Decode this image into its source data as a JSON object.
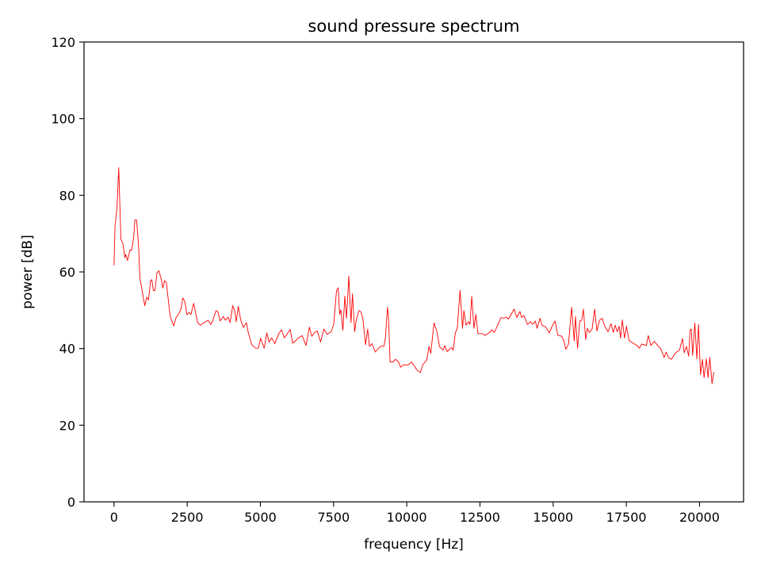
{
  "chart_data": {
    "type": "line",
    "title": "sound pressure spectrum",
    "xlabel": "frequency [Hz]",
    "ylabel": "power [dB]",
    "xlim": [
      -1024,
      21504
    ],
    "ylim": [
      0,
      120
    ],
    "xticks": [
      0,
      2500,
      5000,
      7500,
      10000,
      12500,
      15000,
      17500,
      20000
    ],
    "yticks": [
      0,
      20,
      40,
      60,
      80,
      100,
      120
    ],
    "grid": false,
    "line_color": "#ff0000",
    "series": [
      {
        "x": [
          0,
          35,
          100,
          163,
          235,
          300,
          370,
          400,
          460,
          550,
          600,
          670,
          715,
          770,
          840,
          885,
          940,
          1050,
          1120,
          1175,
          1250,
          1290,
          1345,
          1400,
          1470,
          1535,
          1610,
          1670,
          1725,
          1790,
          1860,
          1925,
          2040,
          2110,
          2220,
          2285,
          2350,
          2420,
          2490,
          2565,
          2630,
          2720,
          2855,
          2945,
          3080,
          3215,
          3305,
          3380,
          3485,
          3550,
          3625,
          3730,
          3805,
          3895,
          3965,
          4055,
          4120,
          4175,
          4245,
          4330,
          4420,
          4520,
          4590,
          4705,
          4840,
          4930,
          5005,
          5130,
          5220,
          5295,
          5385,
          5490,
          5630,
          5725,
          5815,
          5905,
          6015,
          6105,
          6210,
          6285,
          6425,
          6560,
          6675,
          6755,
          6855,
          6940,
          7055,
          7170,
          7280,
          7415,
          7505,
          7600,
          7660,
          7705,
          7750,
          7820,
          7885,
          7940,
          8020,
          8095,
          8145,
          8220,
          8275,
          8365,
          8435,
          8500,
          8590,
          8665,
          8725,
          8815,
          8925,
          9015,
          9105,
          9220,
          9270,
          9340,
          9375,
          9430,
          9540,
          9610,
          9720,
          9790,
          9900,
          10035,
          10170,
          10330,
          10460,
          10550,
          10685,
          10760,
          10820,
          10930,
          11025,
          11120,
          11245,
          11300,
          11380,
          11525,
          11585,
          11660,
          11725,
          11820,
          11905,
          11950,
          12025,
          12115,
          12160,
          12220,
          12295,
          12360,
          12430,
          12585,
          12670,
          12805,
          12915,
          12985,
          13120,
          13215,
          13305,
          13395,
          13470,
          13550,
          13665,
          13760,
          13865,
          13920,
          14000,
          14120,
          14225,
          14300,
          14390,
          14450,
          14550,
          14615,
          14750,
          14870,
          14975,
          15065,
          15160,
          15295,
          15370,
          15430,
          15525,
          15630,
          15720,
          15765,
          15835,
          15910,
          15975,
          16035,
          16110,
          16170,
          16240,
          16330,
          16420,
          16495,
          16585,
          16675,
          16765,
          16875,
          16980,
          17055,
          17120,
          17190,
          17255,
          17305,
          17360,
          17440,
          17505,
          17595,
          17730,
          17870,
          17940,
          18030,
          18185,
          18250,
          18340,
          18455,
          18590,
          18680,
          18790,
          18860,
          18935,
          19040,
          19180,
          19315,
          19420,
          19475,
          19555,
          19630,
          19675,
          19720,
          19765,
          19840,
          19910,
          19965,
          20035,
          20100,
          20155,
          20235,
          20290,
          20350,
          20425,
          20490
        ],
        "y": [
          61.7,
          72,
          76.5,
          87.2,
          68.5,
          67.5,
          63.7,
          64.6,
          63,
          65.8,
          65.6,
          68.9,
          73.6,
          73.6,
          66.8,
          58.2,
          56.1,
          51.2,
          53.4,
          52.7,
          57.7,
          58,
          55.1,
          55.2,
          59.8,
          60.3,
          58.2,
          55.8,
          57.7,
          57.2,
          52.3,
          48.2,
          45.9,
          47.9,
          49.2,
          50.3,
          53.2,
          52.3,
          48.8,
          49.4,
          48.9,
          51.8,
          46.8,
          46.1,
          46.8,
          47.4,
          46.3,
          47.4,
          49.9,
          49.6,
          47.2,
          48.4,
          47.4,
          48.2,
          46.8,
          51.2,
          49.9,
          47,
          51,
          47.4,
          45.5,
          46.8,
          44.1,
          41,
          40.1,
          40.1,
          42.7,
          40.1,
          44.1,
          41.7,
          42.8,
          41.3,
          43.9,
          44.9,
          42.8,
          43.7,
          45,
          41.4,
          42.1,
          42.7,
          43.4,
          40.8,
          45.6,
          43.2,
          44.2,
          44.6,
          41.7,
          45.1,
          43.7,
          44.4,
          46.3,
          55.1,
          55.9,
          48.9,
          50.1,
          44.8,
          53.7,
          47.9,
          58.9,
          46.8,
          54.3,
          44.4,
          47.5,
          49.9,
          49.6,
          47.9,
          41,
          45.1,
          40.6,
          41.3,
          39.1,
          39.9,
          40.6,
          40.6,
          42.7,
          50.8,
          48.2,
          36.5,
          36.5,
          37.2,
          36.5,
          35.1,
          35.8,
          35.7,
          36.5,
          34.6,
          33.7,
          35.8,
          37,
          40.6,
          38.7,
          46.7,
          44.6,
          40.5,
          39.6,
          40.8,
          39.2,
          40.3,
          39.6,
          44.1,
          45.3,
          55.2,
          45.3,
          49.9,
          46.1,
          47,
          46.3,
          53.6,
          45.3,
          48.9,
          43.9,
          43.9,
          43.4,
          44.1,
          44.9,
          44.2,
          46.3,
          48.1,
          47.9,
          48.2,
          47.7,
          48.7,
          50.3,
          48.1,
          49.7,
          48.1,
          48.6,
          46.3,
          47,
          46.3,
          47.2,
          45.3,
          47.9,
          46.1,
          45.6,
          44.1,
          46,
          47.2,
          43.5,
          43.2,
          42,
          39.8,
          41.2,
          50.8,
          42,
          48.4,
          40.1,
          47.2,
          47.4,
          50.3,
          42.4,
          45.3,
          44.2,
          45.1,
          50.3,
          44.6,
          47.4,
          47.9,
          45.8,
          44.4,
          46.5,
          44.2,
          46.1,
          44.4,
          45.8,
          42.7,
          47.5,
          42.7,
          45.8,
          42.1,
          41.4,
          40.8,
          40.1,
          41.2,
          40.8,
          43.4,
          40.8,
          41.9,
          40.6,
          39.9,
          37.7,
          39.1,
          37.7,
          37.2,
          38.9,
          39.6,
          42.6,
          38.9,
          40.6,
          38,
          44.9,
          45.1,
          38.2,
          46.7,
          37.3,
          46.3,
          33.2,
          37.2,
          32.4,
          37.3,
          32.4,
          37.7,
          30.8,
          33.9
        ]
      }
    ]
  }
}
